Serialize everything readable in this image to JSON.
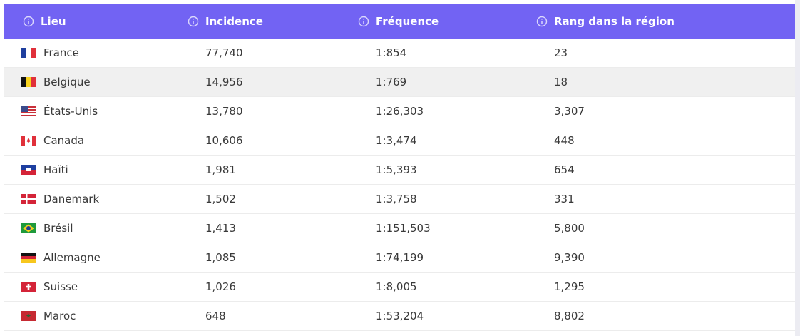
{
  "table": {
    "header": [
      "Lieu",
      "Incidence",
      "Fréquence",
      "Rang dans la région"
    ],
    "rows": [
      [
        "France",
        "77,740",
        "1:854",
        "23"
      ],
      [
        "Belgique",
        "14,956",
        "1:769",
        "18"
      ],
      [
        "États-Unis",
        "13,780",
        "1:26,303",
        "3,307"
      ],
      [
        "Canada",
        "10,606",
        "1:3,474",
        "448"
      ],
      [
        "Haïti",
        "1,981",
        "1:5,393",
        "654"
      ],
      [
        "Danemark",
        "1,502",
        "1:3,758",
        "331"
      ],
      [
        "Brésil",
        "1,413",
        "1:151,503",
        "5,800"
      ],
      [
        "Allemagne",
        "1,085",
        "1:74,199",
        "9,390"
      ],
      [
        "Suisse",
        "1,026",
        "1:8,005",
        "1,295"
      ],
      [
        "Maroc",
        "648",
        "1:53,204",
        "8,802"
      ]
    ]
  }
}
